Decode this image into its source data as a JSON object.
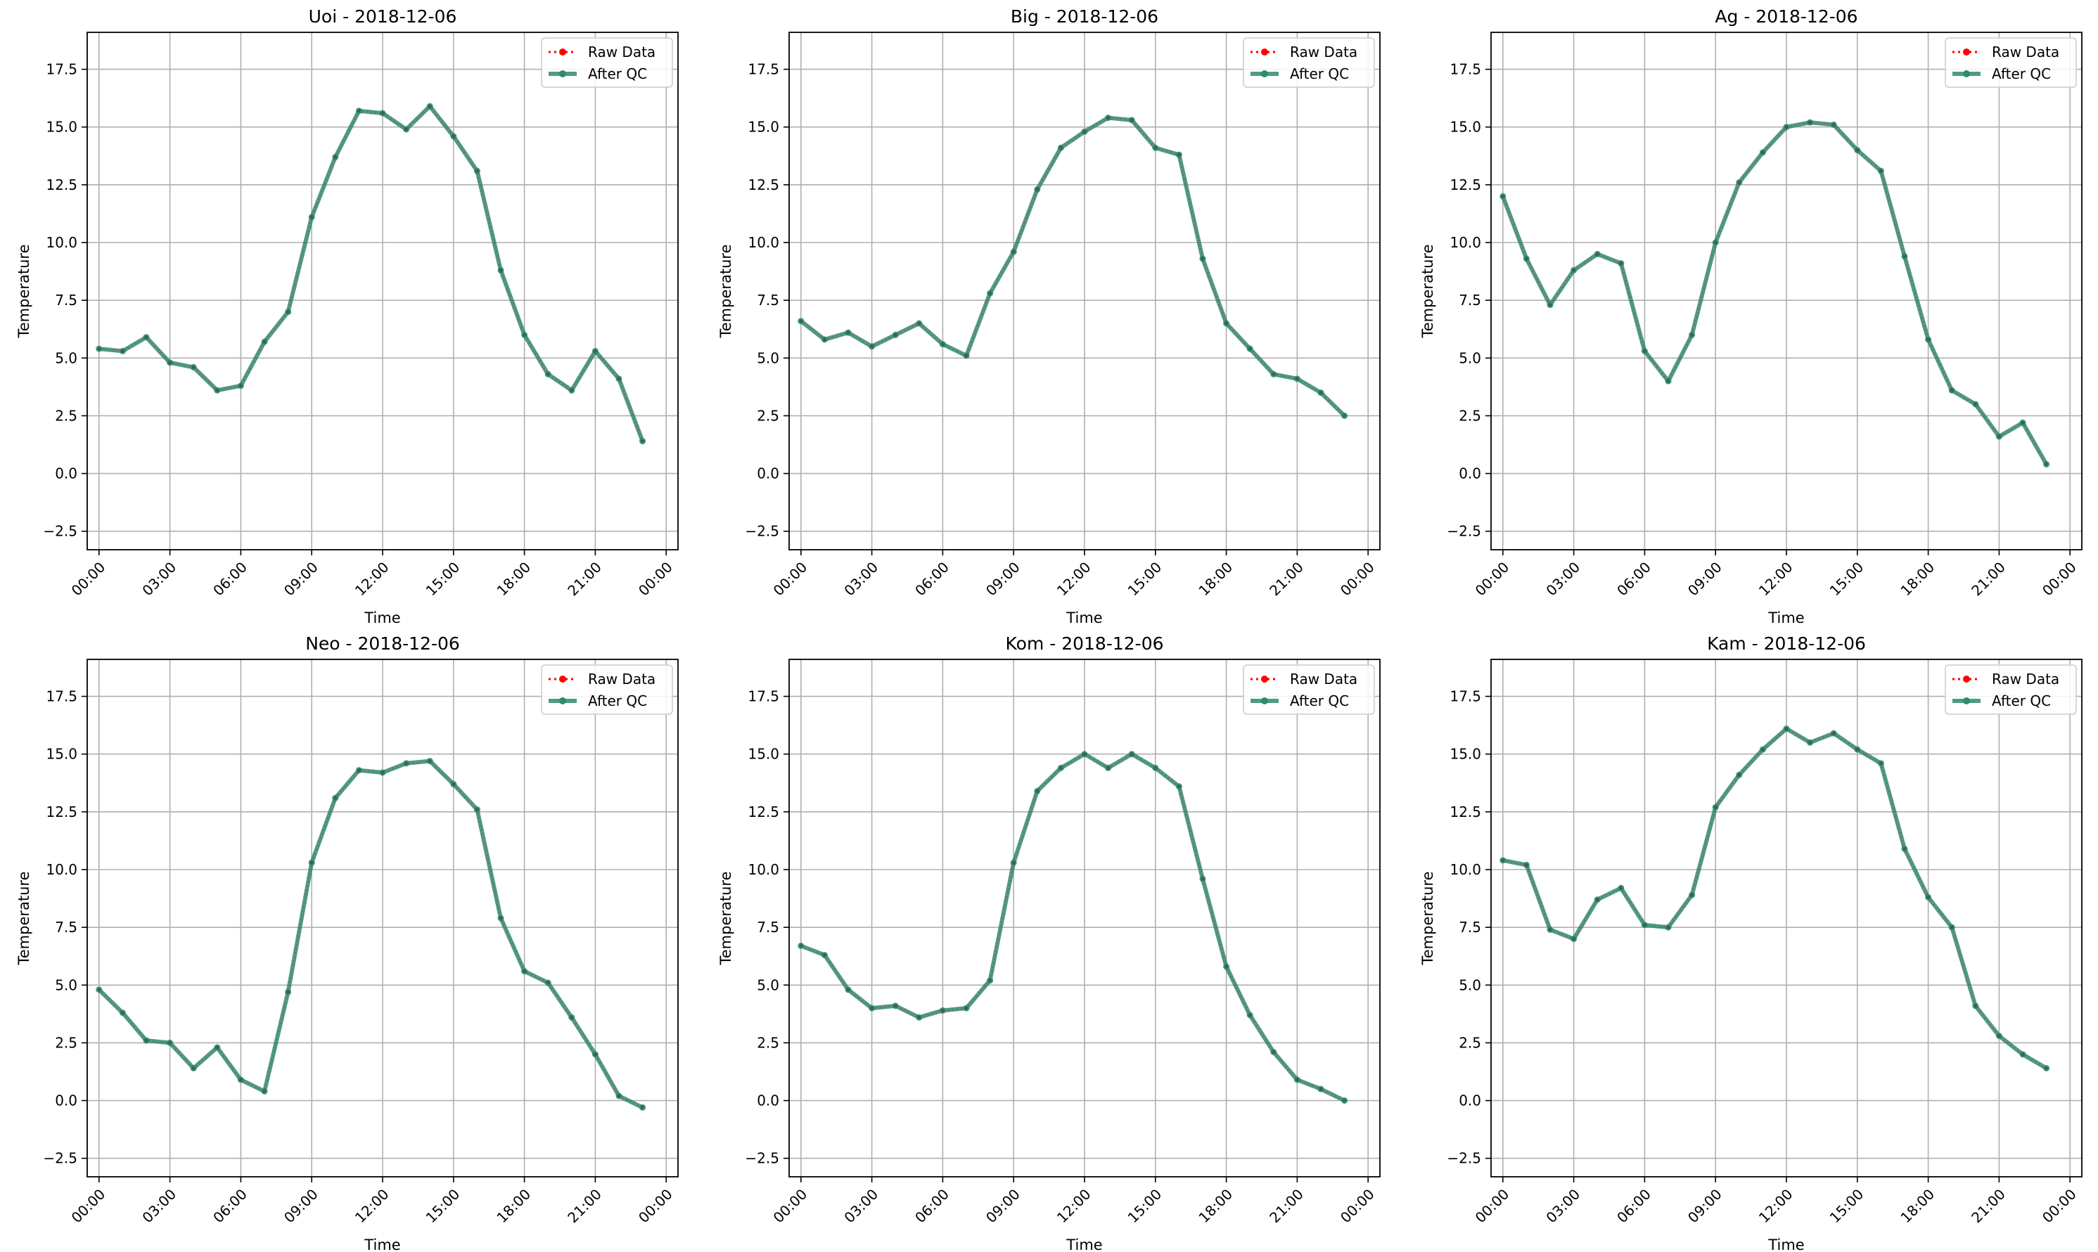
{
  "chart_data": [
    {
      "type": "line",
      "title": "Uoi - 2018-12-06",
      "xlabel": "Time",
      "ylabel": "Temperature",
      "x": [
        "00:00",
        "01:00",
        "02:00",
        "03:00",
        "04:00",
        "05:00",
        "06:00",
        "07:00",
        "08:00",
        "09:00",
        "10:00",
        "11:00",
        "12:00",
        "13:00",
        "14:00",
        "15:00",
        "16:00",
        "17:00",
        "18:00",
        "19:00",
        "20:00",
        "21:00",
        "22:00",
        "23:00"
      ],
      "x_ticks": [
        "00:00",
        "03:00",
        "06:00",
        "09:00",
        "12:00",
        "15:00",
        "18:00",
        "21:00",
        "00:00"
      ],
      "y_ticks": [
        "−2.5",
        "0.0",
        "2.5",
        "5.0",
        "7.5",
        "10.0",
        "12.5",
        "15.0",
        "17.5"
      ],
      "xlim": [
        "23:30 (prev day)",
        "00:30 (next day)"
      ],
      "ylim": [
        -3.3,
        19.1
      ],
      "grid": true,
      "legend": "top-right",
      "series": [
        {
          "name": "Raw Data",
          "style": "dotted",
          "color": "#ff0000",
          "values": [
            5.4,
            5.3,
            5.9,
            4.8,
            4.6,
            3.6,
            3.8,
            5.7,
            7.0,
            11.1,
            13.7,
            15.7,
            15.6,
            14.9,
            15.9,
            14.6,
            13.1,
            8.8,
            6.0,
            4.3,
            3.6,
            5.3,
            4.1,
            1.4
          ]
        },
        {
          "name": "After QC",
          "style": "solid",
          "color": "#2e8b6f",
          "values": [
            5.4,
            5.3,
            5.9,
            4.8,
            4.6,
            3.6,
            3.8,
            5.7,
            7.0,
            11.1,
            13.7,
            15.7,
            15.6,
            14.9,
            15.9,
            14.6,
            13.1,
            8.8,
            6.0,
            4.3,
            3.6,
            5.3,
            4.1,
            1.4
          ]
        }
      ]
    },
    {
      "type": "line",
      "title": "Big - 2018-12-06",
      "xlabel": "Time",
      "ylabel": "Temperature",
      "x": [
        "00:00",
        "01:00",
        "02:00",
        "03:00",
        "04:00",
        "05:00",
        "06:00",
        "07:00",
        "08:00",
        "09:00",
        "10:00",
        "11:00",
        "12:00",
        "13:00",
        "14:00",
        "15:00",
        "16:00",
        "17:00",
        "18:00",
        "19:00",
        "20:00",
        "21:00",
        "22:00",
        "23:00"
      ],
      "x_ticks": [
        "00:00",
        "03:00",
        "06:00",
        "09:00",
        "12:00",
        "15:00",
        "18:00",
        "21:00",
        "00:00"
      ],
      "y_ticks": [
        "−2.5",
        "0.0",
        "2.5",
        "5.0",
        "7.5",
        "10.0",
        "12.5",
        "15.0",
        "17.5"
      ],
      "xlim": [
        "23:30 (prev day)",
        "00:30 (next day)"
      ],
      "ylim": [
        -3.3,
        19.1
      ],
      "grid": true,
      "legend": "top-right",
      "series": [
        {
          "name": "Raw Data",
          "style": "dotted",
          "color": "#ff0000",
          "values": [
            6.6,
            5.8,
            6.1,
            5.5,
            6.0,
            6.5,
            5.6,
            5.1,
            7.8,
            9.6,
            12.3,
            14.1,
            14.8,
            15.4,
            15.3,
            14.1,
            13.8,
            9.3,
            6.5,
            5.4,
            4.3,
            4.1,
            3.5,
            2.5
          ]
        },
        {
          "name": "After QC",
          "style": "solid",
          "color": "#2e8b6f",
          "values": [
            6.6,
            5.8,
            6.1,
            5.5,
            6.0,
            6.5,
            5.6,
            5.1,
            7.8,
            9.6,
            12.3,
            14.1,
            14.8,
            15.4,
            15.3,
            14.1,
            13.8,
            9.3,
            6.5,
            5.4,
            4.3,
            4.1,
            3.5,
            2.5
          ]
        }
      ]
    },
    {
      "type": "line",
      "title": "Ag - 2018-12-06",
      "xlabel": "Time",
      "ylabel": "Temperature",
      "x": [
        "00:00",
        "01:00",
        "02:00",
        "03:00",
        "04:00",
        "05:00",
        "06:00",
        "07:00",
        "08:00",
        "09:00",
        "10:00",
        "11:00",
        "12:00",
        "13:00",
        "14:00",
        "15:00",
        "16:00",
        "17:00",
        "18:00",
        "19:00",
        "20:00",
        "21:00",
        "22:00",
        "23:00"
      ],
      "x_ticks": [
        "00:00",
        "03:00",
        "06:00",
        "09:00",
        "12:00",
        "15:00",
        "18:00",
        "21:00",
        "00:00"
      ],
      "y_ticks": [
        "−2.5",
        "0.0",
        "2.5",
        "5.0",
        "7.5",
        "10.0",
        "12.5",
        "15.0",
        "17.5"
      ],
      "xlim": [
        "23:30 (prev day)",
        "00:30 (next day)"
      ],
      "ylim": [
        -3.3,
        19.1
      ],
      "grid": true,
      "legend": "top-right",
      "series": [
        {
          "name": "Raw Data",
          "style": "dotted",
          "color": "#ff0000",
          "values": [
            12.0,
            9.3,
            7.3,
            8.8,
            9.5,
            9.1,
            5.3,
            4.0,
            6.0,
            10.0,
            12.6,
            13.9,
            15.0,
            15.2,
            15.1,
            14.0,
            13.1,
            9.4,
            5.8,
            3.6,
            3.0,
            1.6,
            2.2,
            0.4
          ]
        },
        {
          "name": "After QC",
          "style": "solid",
          "color": "#2e8b6f",
          "values": [
            12.0,
            9.3,
            7.3,
            8.8,
            9.5,
            9.1,
            5.3,
            4.0,
            6.0,
            10.0,
            12.6,
            13.9,
            15.0,
            15.2,
            15.1,
            14.0,
            13.1,
            9.4,
            5.8,
            3.6,
            3.0,
            1.6,
            2.2,
            0.4
          ]
        }
      ]
    },
    {
      "type": "line",
      "title": "Neo - 2018-12-06",
      "xlabel": "Time",
      "ylabel": "Temperature",
      "x": [
        "00:00",
        "01:00",
        "02:00",
        "03:00",
        "04:00",
        "05:00",
        "06:00",
        "07:00",
        "08:00",
        "09:00",
        "10:00",
        "11:00",
        "12:00",
        "13:00",
        "14:00",
        "15:00",
        "16:00",
        "17:00",
        "18:00",
        "19:00",
        "20:00",
        "21:00",
        "22:00",
        "23:00"
      ],
      "x_ticks": [
        "00:00",
        "03:00",
        "06:00",
        "09:00",
        "12:00",
        "15:00",
        "18:00",
        "21:00",
        "00:00"
      ],
      "y_ticks": [
        "−2.5",
        "0.0",
        "2.5",
        "5.0",
        "7.5",
        "10.0",
        "12.5",
        "15.0",
        "17.5"
      ],
      "xlim": [
        "23:30 (prev day)",
        "00:30 (next day)"
      ],
      "ylim": [
        -3.3,
        19.1
      ],
      "grid": true,
      "legend": "top-right",
      "series": [
        {
          "name": "Raw Data",
          "style": "dotted",
          "color": "#ff0000",
          "values": [
            4.8,
            3.8,
            2.6,
            2.5,
            1.4,
            2.3,
            0.9,
            0.4,
            4.7,
            10.3,
            13.1,
            14.3,
            14.2,
            14.6,
            14.7,
            13.7,
            12.6,
            7.9,
            5.6,
            5.1,
            3.6,
            2.0,
            0.2,
            -0.3
          ]
        },
        {
          "name": "After QC",
          "style": "solid",
          "color": "#2e8b6f",
          "values": [
            4.8,
            3.8,
            2.6,
            2.5,
            1.4,
            2.3,
            0.9,
            0.4,
            4.7,
            10.3,
            13.1,
            14.3,
            14.2,
            14.6,
            14.7,
            13.7,
            12.6,
            7.9,
            5.6,
            5.1,
            3.6,
            2.0,
            0.2,
            -0.3
          ]
        }
      ]
    },
    {
      "type": "line",
      "title": "Kom - 2018-12-06",
      "xlabel": "Time",
      "ylabel": "Temperature",
      "x": [
        "00:00",
        "01:00",
        "02:00",
        "03:00",
        "04:00",
        "05:00",
        "06:00",
        "07:00",
        "08:00",
        "09:00",
        "10:00",
        "11:00",
        "12:00",
        "13:00",
        "14:00",
        "15:00",
        "16:00",
        "17:00",
        "18:00",
        "19:00",
        "20:00",
        "21:00",
        "22:00",
        "23:00"
      ],
      "x_ticks": [
        "00:00",
        "03:00",
        "06:00",
        "09:00",
        "12:00",
        "15:00",
        "18:00",
        "21:00",
        "00:00"
      ],
      "y_ticks": [
        "−2.5",
        "0.0",
        "2.5",
        "5.0",
        "7.5",
        "10.0",
        "12.5",
        "15.0",
        "17.5"
      ],
      "xlim": [
        "23:30 (prev day)",
        "00:30 (next day)"
      ],
      "ylim": [
        -3.3,
        19.1
      ],
      "grid": true,
      "legend": "top-right",
      "series": [
        {
          "name": "Raw Data",
          "style": "dotted",
          "color": "#ff0000",
          "values": [
            6.7,
            6.3,
            4.8,
            4.0,
            4.1,
            3.6,
            3.9,
            4.0,
            5.2,
            10.3,
            13.4,
            14.4,
            15.0,
            14.4,
            15.0,
            14.4,
            13.6,
            9.6,
            5.8,
            3.7,
            2.1,
            0.9,
            0.5,
            0.0
          ]
        },
        {
          "name": "After QC",
          "style": "solid",
          "color": "#2e8b6f",
          "values": [
            6.7,
            6.3,
            4.8,
            4.0,
            4.1,
            3.6,
            3.9,
            4.0,
            5.2,
            10.3,
            13.4,
            14.4,
            15.0,
            14.4,
            15.0,
            14.4,
            13.6,
            9.6,
            5.8,
            3.7,
            2.1,
            0.9,
            0.5,
            0.0
          ]
        }
      ]
    },
    {
      "type": "line",
      "title": "Kam - 2018-12-06",
      "xlabel": "Time",
      "ylabel": "Temperature",
      "x": [
        "00:00",
        "01:00",
        "02:00",
        "03:00",
        "04:00",
        "05:00",
        "06:00",
        "07:00",
        "08:00",
        "09:00",
        "10:00",
        "11:00",
        "12:00",
        "13:00",
        "14:00",
        "15:00",
        "16:00",
        "17:00",
        "18:00",
        "19:00",
        "20:00",
        "21:00",
        "22:00",
        "23:00"
      ],
      "x_ticks": [
        "00:00",
        "03:00",
        "06:00",
        "09:00",
        "12:00",
        "15:00",
        "18:00",
        "21:00",
        "00:00"
      ],
      "y_ticks": [
        "−2.5",
        "0.0",
        "2.5",
        "5.0",
        "7.5",
        "10.0",
        "12.5",
        "15.0",
        "17.5"
      ],
      "xlim": [
        "23:30 (prev day)",
        "00:30 (next day)"
      ],
      "ylim": [
        -3.3,
        19.1
      ],
      "grid": true,
      "legend": "top-right",
      "series": [
        {
          "name": "Raw Data",
          "style": "dotted",
          "color": "#ff0000",
          "values": [
            10.4,
            10.2,
            7.4,
            7.0,
            8.7,
            9.2,
            7.6,
            7.5,
            8.9,
            12.7,
            14.1,
            15.2,
            16.1,
            15.5,
            15.9,
            15.2,
            14.6,
            10.9,
            8.8,
            7.5,
            4.1,
            2.8,
            2.0,
            1.4
          ]
        },
        {
          "name": "After QC",
          "style": "solid",
          "color": "#2e8b6f",
          "values": [
            10.4,
            10.2,
            7.4,
            7.0,
            8.7,
            9.2,
            7.6,
            7.5,
            8.9,
            12.7,
            14.1,
            15.2,
            16.1,
            15.5,
            15.9,
            15.2,
            14.6,
            10.9,
            8.8,
            7.5,
            4.1,
            2.8,
            2.0,
            1.4
          ]
        }
      ]
    }
  ]
}
